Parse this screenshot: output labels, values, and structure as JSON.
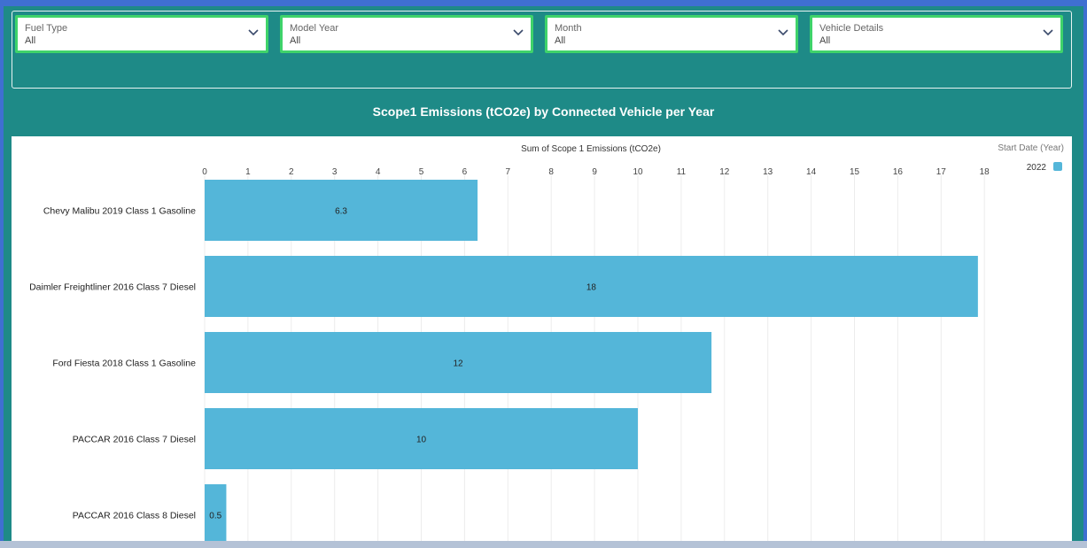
{
  "filters": [
    {
      "label": "Fuel Type",
      "value": "All"
    },
    {
      "label": "Model Year",
      "value": "All"
    },
    {
      "label": "Month",
      "value": "All"
    },
    {
      "label": "Vehicle Details",
      "value": "All"
    }
  ],
  "icons": {
    "dropdown": "chevron-down-icon"
  },
  "colors": {
    "frame": "#3f6fd1",
    "dashboard_background": "#1e8a87",
    "filter_border": "#3fd36a",
    "bar": "#54b6d9"
  },
  "chart_data": {
    "type": "bar",
    "orientation": "horizontal",
    "title": "Scope1 Emissions (tCO2e) by Connected Vehicle per Year",
    "xlabel": "Sum of Scope 1 Emissions (tCO2e)",
    "ylabel": "",
    "xlim": [
      0,
      18
    ],
    "xticks": [
      0,
      1,
      2,
      3,
      4,
      5,
      6,
      7,
      8,
      9,
      10,
      11,
      12,
      13,
      14,
      15,
      16,
      17,
      18
    ],
    "grid": true,
    "legend": {
      "title": "Start Date (Year)",
      "placement": "top-right"
    },
    "categories": [
      "Chevy Malibu 2019 Class 1 Gasoline",
      "Daimler Freightliner 2016 Class 7 Diesel",
      "Ford Fiesta 2018 Class 1 Gasoline",
      "PACCAR 2016 Class 7 Diesel",
      "PACCAR 2016 Class 8 Diesel"
    ],
    "series": [
      {
        "name": "2022",
        "values": [
          6.3,
          17.85,
          11.7,
          10.0,
          0.5
        ],
        "data_labels": [
          "6.3",
          "18",
          "12",
          "10",
          "0.5"
        ]
      }
    ]
  }
}
